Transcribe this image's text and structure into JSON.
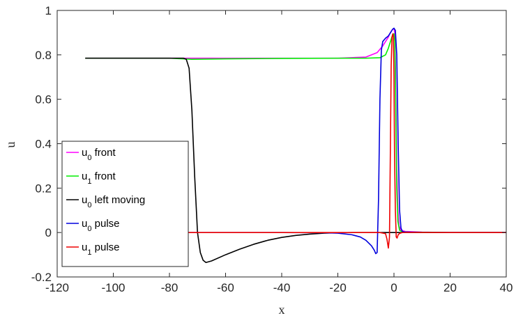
{
  "chart_data": {
    "type": "line",
    "title": "",
    "xlabel": "x",
    "ylabel": "u",
    "xlim": [
      -120,
      40
    ],
    "ylim": [
      -0.2,
      1
    ],
    "xticks": [
      -120,
      -100,
      -80,
      -60,
      -40,
      -20,
      0,
      20,
      40
    ],
    "xtick_labels": [
      "-120",
      "-100",
      "-80",
      "-60",
      "-40",
      "-20",
      "0",
      "20",
      "40"
    ],
    "yticks": [
      -0.2,
      0,
      0.2,
      0.4,
      0.6,
      0.8,
      1
    ],
    "ytick_labels": [
      "-0.2",
      "0",
      "0.2",
      "0.4",
      "0.6",
      "0.8",
      "1"
    ],
    "grid": false,
    "legend_position": "bottom-left",
    "series": [
      {
        "name": "u0 front",
        "legend": {
          "base": "u",
          "sub": "0",
          "rest": " front"
        },
        "color": "#ff00ff",
        "x": [
          -110,
          -100,
          -80,
          -60,
          -40,
          -20,
          -10,
          -6,
          -4,
          -3,
          -2,
          -1.5,
          -1,
          -0.5,
          0,
          0.3,
          0.6,
          1.0,
          1.4,
          1.8,
          2.5,
          4,
          10,
          20,
          40
        ],
        "y": [
          0.785,
          0.785,
          0.785,
          0.785,
          0.785,
          0.785,
          0.79,
          0.81,
          0.84,
          0.86,
          0.88,
          0.895,
          0.905,
          0.915,
          0.918,
          0.9,
          0.7,
          0.3,
          0.1,
          0.03,
          0.01,
          0.005,
          0.002,
          0.0,
          0.0
        ]
      },
      {
        "name": "u1 front",
        "legend": {
          "base": "u",
          "sub": "1",
          "rest": " front"
        },
        "color": "#00ee00",
        "x": [
          -110,
          -100,
          -80,
          -75,
          -72,
          -60,
          -40,
          -20,
          -10,
          -5,
          -3,
          -2,
          -1,
          -0.5,
          0,
          0.3,
          0.6,
          1.0,
          1.4,
          2,
          3,
          5,
          10,
          20,
          40
        ],
        "y": [
          0.785,
          0.785,
          0.785,
          0.782,
          0.78,
          0.782,
          0.784,
          0.785,
          0.785,
          0.787,
          0.8,
          0.83,
          0.87,
          0.89,
          0.895,
          0.86,
          0.6,
          0.2,
          0.05,
          0.01,
          0.003,
          0.002,
          0.001,
          0.0,
          0.0
        ]
      },
      {
        "name": "u0 left moving",
        "legend": {
          "base": "u",
          "sub": "0",
          "rest": " left moving"
        },
        "color": "#000000",
        "x": [
          -110,
          -100,
          -90,
          -80,
          -75,
          -74,
          -73,
          -72,
          -71,
          -70,
          -69,
          -68,
          -67,
          -65,
          -60,
          -55,
          -50,
          -45,
          -40,
          -35,
          -30,
          -25,
          -20,
          -15,
          -10,
          -5,
          0,
          10,
          20,
          40
        ],
        "y": [
          0.785,
          0.785,
          0.785,
          0.785,
          0.785,
          0.78,
          0.74,
          0.55,
          0.25,
          0.0,
          -0.09,
          -0.125,
          -0.135,
          -0.128,
          -0.1,
          -0.075,
          -0.053,
          -0.035,
          -0.022,
          -0.013,
          -0.007,
          -0.003,
          -0.001,
          0.0,
          0.0,
          0.0,
          0.0,
          0.0,
          0.0,
          0.0
        ]
      },
      {
        "name": "u0 pulse",
        "legend": {
          "base": "u",
          "sub": "0",
          "rest": " pulse"
        },
        "color": "#0000dd",
        "x": [
          -75,
          -60,
          -40,
          -25,
          -20,
          -15,
          -12,
          -10,
          -8,
          -7,
          -6.5,
          -6,
          -5.5,
          -5,
          -4.5,
          -4,
          -3,
          -2,
          -1,
          -0.5,
          0,
          0.5,
          1,
          1.5,
          2,
          2.5,
          3,
          4,
          10,
          20,
          40
        ],
        "y": [
          0.0,
          0.0,
          0.0,
          -0.001,
          -0.003,
          -0.01,
          -0.02,
          -0.035,
          -0.06,
          -0.08,
          -0.095,
          -0.09,
          0.15,
          0.6,
          0.82,
          0.86,
          0.875,
          0.885,
          0.905,
          0.915,
          0.92,
          0.91,
          0.8,
          0.4,
          0.1,
          0.02,
          0.005,
          0.002,
          0.0,
          0.0,
          0.0
        ]
      },
      {
        "name": "u1 pulse",
        "legend": {
          "base": "u",
          "sub": "1",
          "rest": " pulse"
        },
        "color": "#ee0000",
        "x": [
          -75,
          -60,
          -40,
          -20,
          -10,
          -5,
          -3,
          -2.5,
          -2,
          -1.6,
          -1.3,
          -1.0,
          -0.7,
          -0.4,
          -0.2,
          0,
          0.2,
          0.5,
          0.8,
          1.1,
          1.5,
          2,
          3,
          5,
          10,
          20,
          40
        ],
        "y": [
          0.0,
          0.0,
          0.0,
          0.0,
          0.0,
          0.0,
          -0.005,
          -0.03,
          -0.07,
          -0.02,
          0.35,
          0.75,
          0.88,
          0.895,
          0.88,
          0.7,
          0.35,
          0.1,
          -0.02,
          -0.025,
          -0.01,
          -0.004,
          0.0,
          0.0,
          0.0,
          0.0,
          0.0
        ]
      }
    ]
  }
}
